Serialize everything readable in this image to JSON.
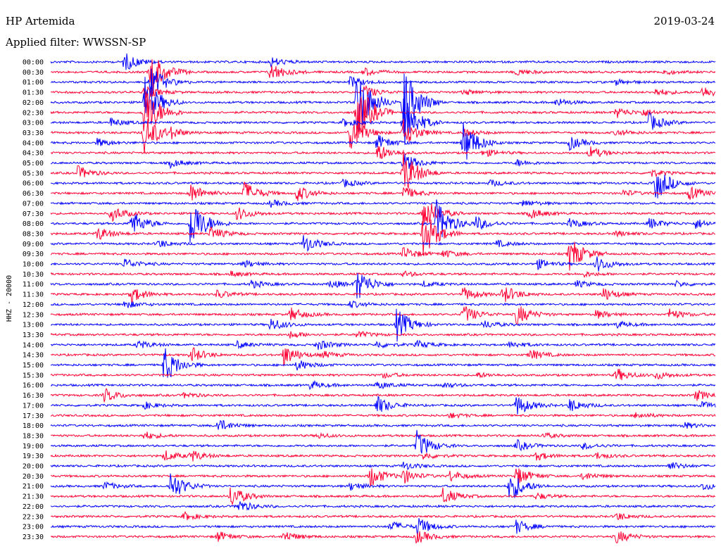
{
  "header": {
    "station": "HP Artemida",
    "date": "2019-03-24",
    "filter": "Applied filter: WWSSN-SP"
  },
  "chart_data": {
    "type": "line",
    "subtype": "helicorder",
    "channel_label": "HHZ - 20000",
    "colors": [
      "#0000ff",
      "#ff0033"
    ],
    "background": "#ffffff",
    "rows": [
      {
        "time": "00:00",
        "events": [
          [
            0.11,
            14
          ],
          [
            0.33,
            7
          ]
        ]
      },
      {
        "time": "00:30",
        "events": [
          [
            0.15,
            34
          ],
          [
            0.33,
            14
          ],
          [
            0.47,
            6
          ],
          [
            0.7,
            5
          ],
          [
            0.92,
            4
          ]
        ]
      },
      {
        "time": "01:00",
        "events": [
          [
            0.15,
            24
          ],
          [
            0.45,
            8
          ],
          [
            0.85,
            4
          ]
        ]
      },
      {
        "time": "01:30",
        "events": [
          [
            0.14,
            10
          ],
          [
            0.47,
            10
          ],
          [
            0.62,
            4
          ],
          [
            0.91,
            5
          ],
          [
            0.98,
            9
          ]
        ]
      },
      {
        "time": "02:00",
        "events": [
          [
            0.14,
            40
          ],
          [
            0.46,
            55
          ],
          [
            0.53,
            60
          ],
          [
            0.76,
            6
          ]
        ]
      },
      {
        "time": "02:30",
        "events": [
          [
            0.14,
            45
          ],
          [
            0.46,
            50
          ],
          [
            0.85,
            8
          ],
          [
            0.89,
            5
          ]
        ]
      },
      {
        "time": "03:00",
        "events": [
          [
            0.09,
            6
          ],
          [
            0.44,
            6
          ],
          [
            0.53,
            40
          ],
          [
            0.9,
            14
          ]
        ]
      },
      {
        "time": "03:30",
        "events": [
          [
            0.14,
            30
          ],
          [
            0.18,
            6
          ],
          [
            0.45,
            25
          ],
          [
            0.53,
            20
          ],
          [
            0.62,
            6
          ],
          [
            0.85,
            5
          ]
        ]
      },
      {
        "time": "04:00",
        "events": [
          [
            0.07,
            6
          ],
          [
            0.49,
            12
          ],
          [
            0.62,
            34
          ],
          [
            0.78,
            10
          ]
        ]
      },
      {
        "time": "04:30",
        "events": [
          [
            0.49,
            14
          ],
          [
            0.65,
            6
          ],
          [
            0.81,
            9
          ]
        ]
      },
      {
        "time": "05:00",
        "events": [
          [
            0.18,
            6
          ],
          [
            0.53,
            14
          ],
          [
            0.7,
            5
          ]
        ]
      },
      {
        "time": "05:30",
        "events": [
          [
            0.04,
            10
          ],
          [
            0.53,
            34
          ],
          [
            0.9,
            6
          ]
        ]
      },
      {
        "time": "06:00",
        "events": [
          [
            0.44,
            6
          ],
          [
            0.66,
            5
          ],
          [
            0.91,
            26
          ]
        ]
      },
      {
        "time": "06:30",
        "events": [
          [
            0.21,
            14
          ],
          [
            0.29,
            18
          ],
          [
            0.37,
            12
          ],
          [
            0.53,
            10
          ],
          [
            0.86,
            5
          ],
          [
            0.96,
            10
          ]
        ]
      },
      {
        "time": "07:00",
        "events": [
          [
            0.33,
            5
          ],
          [
            0.71,
            5
          ]
        ]
      },
      {
        "time": "07:30",
        "events": [
          [
            0.09,
            12
          ],
          [
            0.28,
            10
          ],
          [
            0.56,
            26
          ],
          [
            0.72,
            8
          ]
        ]
      },
      {
        "time": "08:00",
        "events": [
          [
            0.12,
            20
          ],
          [
            0.21,
            40
          ],
          [
            0.58,
            34
          ],
          [
            0.64,
            10
          ],
          [
            0.78,
            7
          ],
          [
            0.9,
            8
          ],
          [
            0.97,
            7
          ]
        ]
      },
      {
        "time": "08:30",
        "events": [
          [
            0.07,
            10
          ],
          [
            0.24,
            10
          ],
          [
            0.56,
            36
          ],
          [
            0.85,
            4
          ]
        ]
      },
      {
        "time": "09:00",
        "events": [
          [
            0.16,
            6
          ],
          [
            0.38,
            14
          ],
          [
            0.67,
            5
          ]
        ]
      },
      {
        "time": "09:30",
        "events": [
          [
            0.53,
            10
          ],
          [
            0.59,
            6
          ],
          [
            0.78,
            26
          ]
        ]
      },
      {
        "time": "10:00",
        "events": [
          [
            0.11,
            8
          ],
          [
            0.29,
            5
          ],
          [
            0.73,
            8
          ],
          [
            0.82,
            12
          ]
        ]
      },
      {
        "time": "10:30",
        "events": [
          [
            0.27,
            4
          ],
          [
            0.53,
            4
          ],
          [
            0.8,
            4
          ]
        ]
      },
      {
        "time": "11:00",
        "events": [
          [
            0.3,
            6
          ],
          [
            0.42,
            6
          ],
          [
            0.46,
            24
          ],
          [
            0.56,
            4
          ],
          [
            0.79,
            5
          ],
          [
            0.94,
            4
          ]
        ]
      },
      {
        "time": "11:30",
        "events": [
          [
            0.12,
            12
          ],
          [
            0.25,
            6
          ],
          [
            0.62,
            10
          ],
          [
            0.68,
            14
          ],
          [
            0.83,
            10
          ]
        ]
      },
      {
        "time": "12:00",
        "events": [
          [
            0.11,
            6
          ],
          [
            0.45,
            5
          ]
        ]
      },
      {
        "time": "12:30",
        "events": [
          [
            0.36,
            10
          ],
          [
            0.62,
            14
          ],
          [
            0.7,
            16
          ],
          [
            0.82,
            6
          ],
          [
            0.93,
            8
          ]
        ]
      },
      {
        "time": "13:00",
        "events": [
          [
            0.33,
            10
          ],
          [
            0.52,
            24
          ],
          [
            0.65,
            6
          ],
          [
            0.85,
            5
          ]
        ]
      },
      {
        "time": "13:30",
        "events": [
          [
            0.36,
            5
          ],
          [
            0.46,
            5
          ]
        ]
      },
      {
        "time": "14:00",
        "events": [
          [
            0.13,
            6
          ],
          [
            0.28,
            5
          ],
          [
            0.4,
            8
          ],
          [
            0.49,
            5
          ],
          [
            0.55,
            6
          ],
          [
            0.69,
            5
          ]
        ]
      },
      {
        "time": "14:30",
        "events": [
          [
            0.21,
            12
          ],
          [
            0.35,
            16
          ],
          [
            0.41,
            5
          ],
          [
            0.72,
            8
          ]
        ]
      },
      {
        "time": "15:00",
        "events": [
          [
            0.17,
            28
          ],
          [
            0.37,
            8
          ]
        ]
      },
      {
        "time": "15:30",
        "events": [
          [
            0.5,
            4
          ],
          [
            0.64,
            4
          ],
          [
            0.85,
            10
          ],
          [
            0.91,
            6
          ]
        ]
      },
      {
        "time": "16:00",
        "events": [
          [
            0.39,
            6
          ],
          [
            0.49,
            6
          ],
          [
            0.59,
            4
          ]
        ]
      },
      {
        "time": "16:30",
        "events": [
          [
            0.08,
            10
          ],
          [
            0.2,
            4
          ],
          [
            0.97,
            8
          ]
        ]
      },
      {
        "time": "17:00",
        "events": [
          [
            0.14,
            5
          ],
          [
            0.49,
            14
          ],
          [
            0.7,
            16
          ],
          [
            0.78,
            10
          ],
          [
            0.98,
            5
          ]
        ]
      },
      {
        "time": "17:30",
        "events": [
          [
            0.6,
            4
          ],
          [
            0.88,
            5
          ]
        ]
      },
      {
        "time": "18:00",
        "events": [
          [
            0.25,
            10
          ],
          [
            0.95,
            5
          ]
        ]
      },
      {
        "time": "18:30",
        "events": [
          [
            0.14,
            6
          ],
          [
            0.4,
            4
          ],
          [
            0.74,
            4
          ]
        ]
      },
      {
        "time": "19:00",
        "events": [
          [
            0.55,
            22
          ],
          [
            0.7,
            8
          ],
          [
            0.8,
            5
          ]
        ]
      },
      {
        "time": "19:30",
        "events": [
          [
            0.17,
            8
          ],
          [
            0.21,
            8
          ],
          [
            0.56,
            5
          ],
          [
            0.73,
            6
          ],
          [
            0.82,
            5
          ]
        ]
      },
      {
        "time": "20:00",
        "events": [
          [
            0.53,
            6
          ],
          [
            0.93,
            6
          ]
        ]
      },
      {
        "time": "20:30",
        "events": [
          [
            0.48,
            16
          ],
          [
            0.53,
            10
          ],
          [
            0.6,
            8
          ],
          [
            0.7,
            14
          ],
          [
            0.8,
            6
          ]
        ]
      },
      {
        "time": "21:00",
        "events": [
          [
            0.08,
            6
          ],
          [
            0.18,
            22
          ],
          [
            0.45,
            6
          ],
          [
            0.69,
            24
          ],
          [
            0.98,
            6
          ]
        ]
      },
      {
        "time": "21:30",
        "events": [
          [
            0.27,
            16
          ],
          [
            0.59,
            12
          ],
          [
            0.73,
            5
          ]
        ]
      },
      {
        "time": "22:00",
        "events": [
          [
            0.28,
            10
          ]
        ]
      },
      {
        "time": "22:30",
        "events": [
          [
            0.2,
            6
          ],
          [
            0.85,
            6
          ]
        ]
      },
      {
        "time": "23:00",
        "events": [
          [
            0.51,
            8
          ],
          [
            0.55,
            14
          ],
          [
            0.7,
            10
          ]
        ]
      },
      {
        "time": "23:30",
        "events": [
          [
            0.25,
            8
          ],
          [
            0.35,
            8
          ],
          [
            0.55,
            10
          ],
          [
            0.85,
            10
          ]
        ]
      }
    ]
  }
}
